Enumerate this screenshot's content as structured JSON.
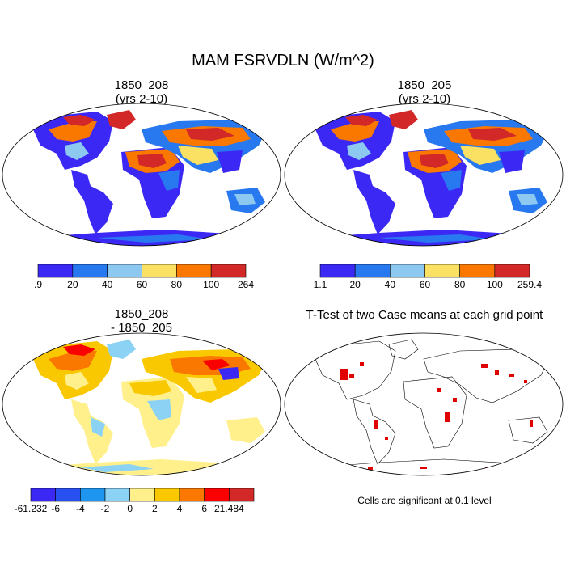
{
  "title": "MAM FSRVDLN (W/m^2)",
  "panels": [
    {
      "title": "1850_208",
      "subtitle": "(yrs 2-10)"
    },
    {
      "title": "1850_205",
      "subtitle": "(yrs 2-10)"
    },
    {
      "title": "1850_208",
      "subtitle": "- 1850_205"
    },
    {
      "title": "T-Test of two Case means at each grid point",
      "subtitle": ""
    }
  ],
  "note": "Cells are significant at 0.1 level",
  "colorbars": [
    {
      "labels": [
        ".9",
        "20",
        "40",
        "60",
        "80",
        "100",
        "264"
      ],
      "colors": [
        "#3c28f5",
        "#2878f0",
        "#8cc8f0",
        "#fae164",
        "#fa7800",
        "#d22828"
      ]
    },
    {
      "labels": [
        "1.1",
        "20",
        "40",
        "60",
        "80",
        "100",
        "259.4"
      ],
      "colors": [
        "#3c28f5",
        "#2878f0",
        "#8cc8f0",
        "#fae164",
        "#fa7800",
        "#d22828"
      ]
    },
    {
      "labels": [
        "-61.232",
        "-6",
        "-4",
        "-2",
        "0",
        "2",
        "4",
        "6",
        "21.484"
      ],
      "colors": [
        "#3c28f5",
        "#2850f0",
        "#1e96f0",
        "#8cd2f5",
        "#fff08c",
        "#fac800",
        "#fa7800",
        "#fa0000",
        "#d22828"
      ]
    }
  ],
  "chart_data": {
    "type": "heatmap",
    "title": "MAM FSRVDLN (W/m^2)",
    "projection": "Robinson",
    "maps": [
      {
        "name": "1850_208 (yrs 2-10)",
        "min": 0.9,
        "max": 264,
        "levels": [
          20,
          40,
          60,
          80,
          100
        ]
      },
      {
        "name": "1850_205 (yrs 2-10)",
        "min": 1.1,
        "max": 259.4,
        "levels": [
          20,
          40,
          60,
          80,
          100
        ]
      },
      {
        "name": "1850_208 - 1850_205",
        "min": -61.232,
        "max": 21.484,
        "levels": [
          -6,
          -4,
          -2,
          0,
          2,
          4,
          6
        ]
      },
      {
        "name": "T-Test of two Case means at each grid point",
        "significance_level": 0.1
      }
    ]
  }
}
